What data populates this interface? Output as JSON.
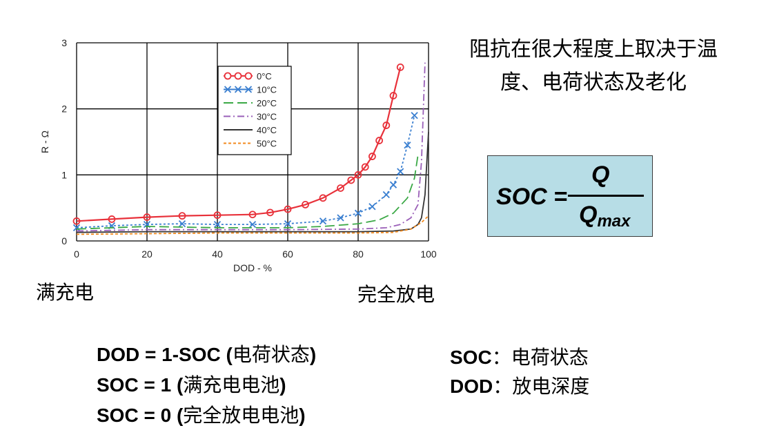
{
  "chart_data": {
    "type": "line",
    "xlabel": "DOD - %",
    "ylabel": "R - Ω",
    "xlim": [
      0,
      100
    ],
    "ylim": [
      0,
      3
    ],
    "xticks": [
      0,
      20,
      40,
      60,
      80,
      100
    ],
    "yticks": [
      0,
      1,
      2,
      3
    ],
    "grid": true,
    "legend_position": "upper-middle",
    "series": [
      {
        "name": "0°C",
        "color": "#e8313a",
        "style": "circle-line",
        "x": [
          0,
          10,
          20,
          30,
          40,
          50,
          55,
          60,
          65,
          70,
          75,
          78,
          80,
          82,
          84,
          86,
          88,
          90,
          92
        ],
        "y": [
          0.3,
          0.33,
          0.36,
          0.38,
          0.39,
          0.4,
          0.43,
          0.48,
          0.55,
          0.65,
          0.8,
          0.92,
          1.0,
          1.12,
          1.28,
          1.52,
          1.75,
          2.2,
          2.63
        ]
      },
      {
        "name": "10°C",
        "color": "#3a7fd0",
        "style": "x-marker",
        "x": [
          0,
          10,
          20,
          30,
          40,
          50,
          60,
          70,
          75,
          80,
          84,
          88,
          90,
          92,
          94,
          96
        ],
        "y": [
          0.2,
          0.23,
          0.25,
          0.26,
          0.25,
          0.25,
          0.26,
          0.3,
          0.35,
          0.42,
          0.52,
          0.7,
          0.85,
          1.05,
          1.45,
          1.9
        ]
      },
      {
        "name": "20°C",
        "color": "#3aa845",
        "style": "dash-long",
        "x": [
          0,
          20,
          40,
          60,
          70,
          80,
          86,
          90,
          94,
          96,
          97
        ],
        "y": [
          0.18,
          0.22,
          0.2,
          0.2,
          0.22,
          0.26,
          0.32,
          0.42,
          0.65,
          0.95,
          1.3
        ]
      },
      {
        "name": "30°C",
        "color": "#9a5fb8",
        "style": "dash-dot",
        "x": [
          0,
          20,
          40,
          60,
          80,
          88,
          92,
          95,
          97,
          98,
          99
        ],
        "y": [
          0.15,
          0.17,
          0.17,
          0.17,
          0.18,
          0.2,
          0.25,
          0.35,
          0.55,
          1.2,
          2.7
        ]
      },
      {
        "name": "40°C",
        "color": "#333333",
        "style": "solid-thin",
        "x": [
          0,
          20,
          40,
          60,
          80,
          90,
          95,
          97,
          98,
          99,
          100
        ],
        "y": [
          0.13,
          0.14,
          0.14,
          0.14,
          0.14,
          0.15,
          0.18,
          0.25,
          0.35,
          0.7,
          1.65
        ]
      },
      {
        "name": "50°C",
        "color": "#f28a1e",
        "style": "dash-short",
        "x": [
          0,
          20,
          40,
          60,
          80,
          90,
          95,
          98,
          100
        ],
        "y": [
          0.1,
          0.11,
          0.12,
          0.12,
          0.12,
          0.13,
          0.18,
          0.28,
          0.38
        ]
      }
    ]
  },
  "labels": {
    "full_charge": "满充电",
    "full_discharge": "完全放电"
  },
  "heading": {
    "line1": "阻抗在很大程度上取决于温",
    "line2": "度、电荷状态及老化"
  },
  "formula": {
    "lhs": "SOC =",
    "numerator": "Q",
    "denominator_main": "Q",
    "denominator_sub": "max",
    "box_color": "#b7dde6"
  },
  "notes": {
    "left": [
      {
        "bold": "DOD = 1-SOC (",
        "cn": "电荷状态",
        "end": ")"
      },
      {
        "bold": "SOC = 1 (",
        "cn": "满充电电池",
        "end": ")"
      },
      {
        "bold": "SOC = 0 (",
        "cn": "完全放电电池",
        "end": ")"
      }
    ],
    "right": [
      {
        "bold": "SOC",
        "cn": "：电荷状态"
      },
      {
        "bold": "DOD",
        "cn": "：放电深度"
      }
    ]
  }
}
